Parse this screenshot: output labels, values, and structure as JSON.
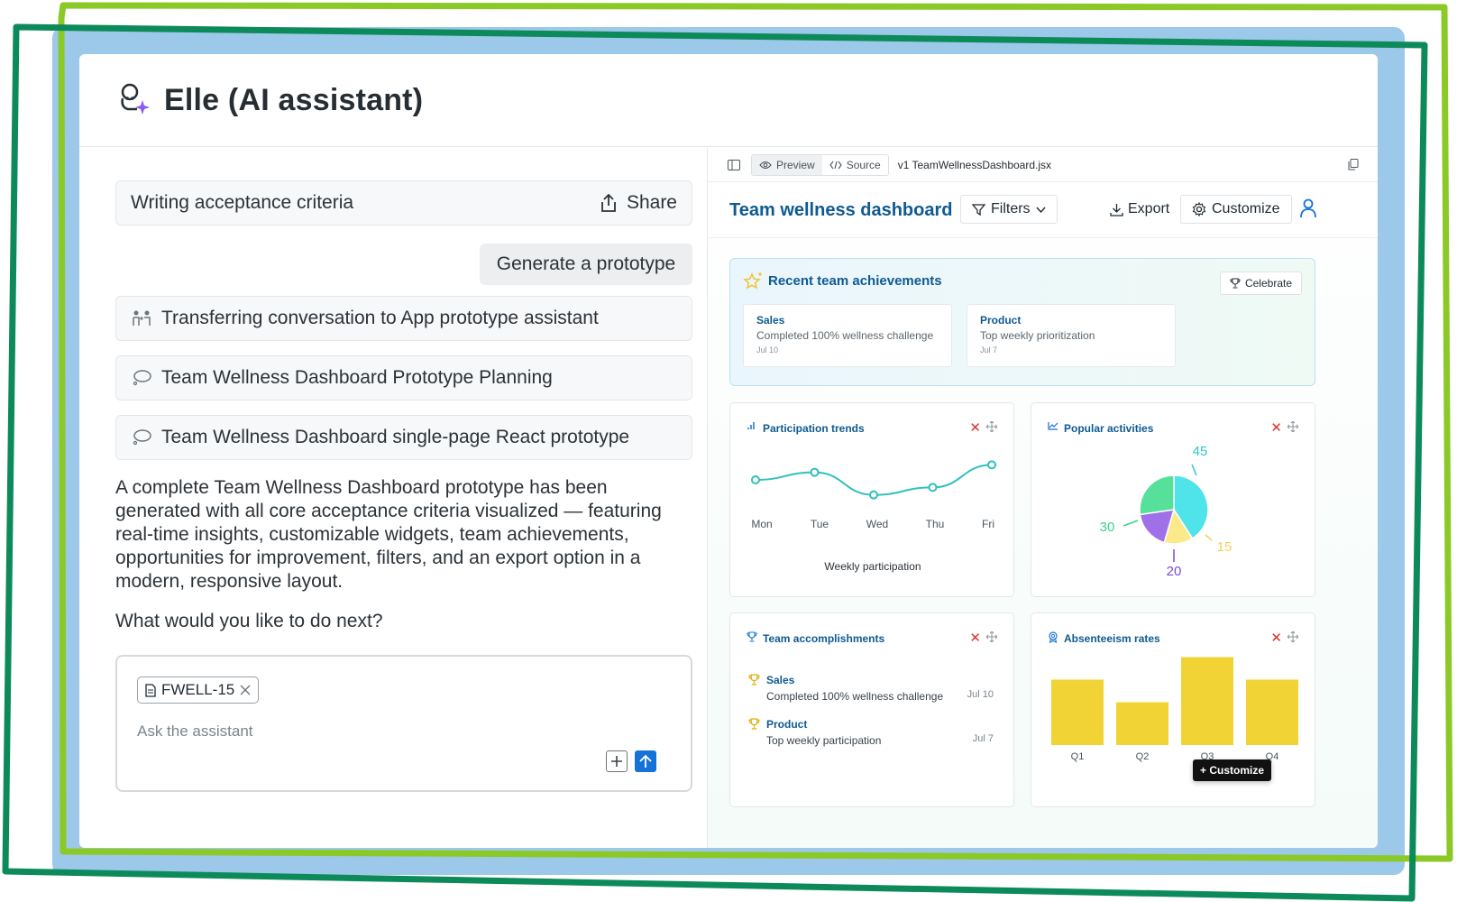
{
  "header": {
    "title": "Elle (AI assistant)"
  },
  "chat": {
    "topic": {
      "label": "Writing acceptance criteria",
      "share_label": "Share"
    },
    "user_message": "Generate a prototype",
    "steps": [
      {
        "label": "Transferring conversation to App prototype assistant",
        "icon": "people-icon"
      },
      {
        "label": "Team Wellness Dashboard Prototype Planning",
        "icon": "thought-bubble-icon"
      },
      {
        "label": "Team Wellness Dashboard single-page React prototype",
        "icon": "thought-bubble-icon"
      }
    ],
    "response": "A complete Team Wellness Dashboard prototype has been generated with all core acceptance criteria visualized — featuring real-time insights, customizable widgets, team achievements, opportunities for improvement, filters, and an export option in a modern, responsive layout.",
    "followup": "What would you like to do next?",
    "composer": {
      "chip": "FWELL-15",
      "placeholder": "Ask the assistant"
    }
  },
  "artifact": {
    "toolbar": {
      "preview": "Preview",
      "source": "Source",
      "filename": "v1 TeamWellnessDashboard.jsx"
    },
    "dashboard": {
      "title": "Team wellness dashboard",
      "filters": "Filters",
      "export": "Export",
      "customize": "Customize",
      "achievements": {
        "title": "Recent team achievements",
        "celebrate": "Celebrate",
        "items": [
          {
            "team": "Sales",
            "desc": "Completed 100% wellness challenge",
            "date": "Jul 10"
          },
          {
            "team": "Product",
            "desc": "Top weekly prioritization",
            "date": "Jul 7"
          }
        ]
      },
      "participation": {
        "title": "Participation trends",
        "caption": "Weekly participation"
      },
      "popular": {
        "title": "Popular activities"
      },
      "accomplishments": {
        "title": "Team accomplishments",
        "items": [
          {
            "team": "Sales",
            "desc": "Completed 100% wellness challenge",
            "date": "Jul 10"
          },
          {
            "team": "Product",
            "desc": "Top weekly participation",
            "date": "Jul 7"
          }
        ]
      },
      "absenteeism": {
        "title": "Absenteeism rates"
      },
      "tooltip": "+ Customize"
    }
  },
  "chart_data": [
    {
      "type": "line",
      "title": "Participation trends",
      "categories": [
        "Mon",
        "Tue",
        "Wed",
        "Thu",
        "Fri"
      ],
      "values": [
        3,
        4,
        1,
        2,
        5
      ],
      "xlabel": "Weekly participation",
      "ylim": [
        0,
        6
      ],
      "color": "#2fc1bd"
    },
    {
      "type": "pie",
      "title": "Popular activities",
      "values": [
        45,
        15,
        20,
        30
      ],
      "labels": [
        "45",
        "15",
        "20",
        "30"
      ],
      "colors": [
        "#4fe3ea",
        "#fbe98a",
        "#a070e8",
        "#56e09a"
      ],
      "label_colors": [
        "#2ec9c4",
        "#f1d25a",
        "#7b49d6",
        "#3dd08a"
      ]
    },
    {
      "type": "bar",
      "title": "Absenteeism rates",
      "categories": [
        "Q1",
        "Q2",
        "Q3",
        "Q4"
      ],
      "values": [
        58,
        38,
        78,
        58
      ],
      "ylim": [
        0,
        80
      ],
      "color": "#f2d335"
    }
  ]
}
